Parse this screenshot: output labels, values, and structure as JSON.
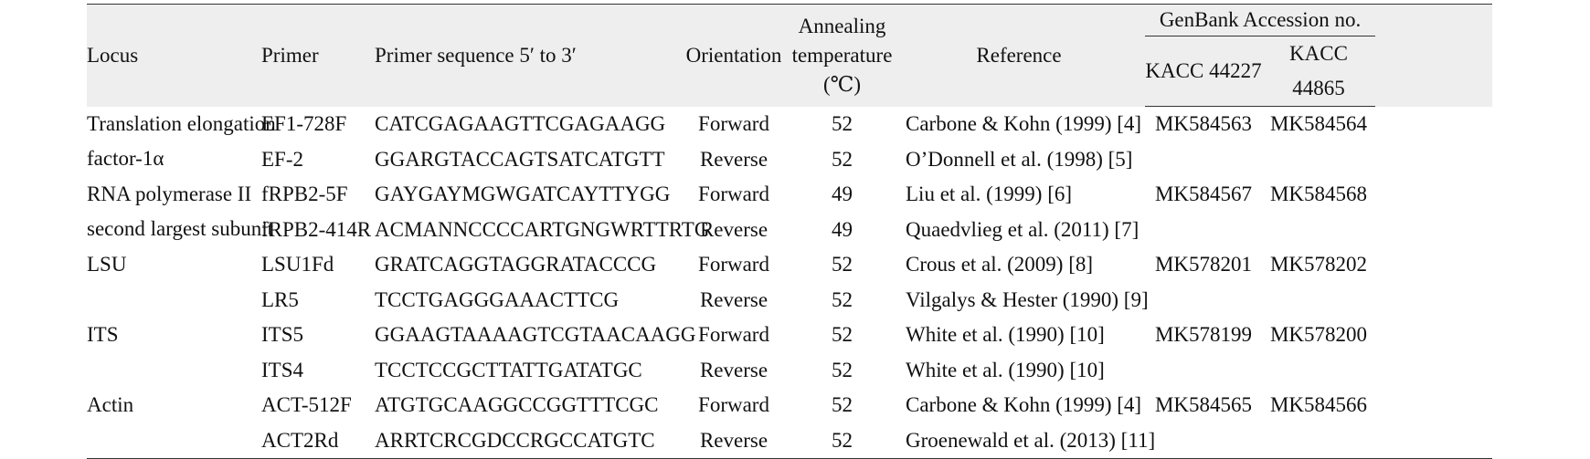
{
  "headers": {
    "locus": "Locus",
    "primer": "Primer",
    "sequence": "Primer sequence 5′ to 3′",
    "orientation": "Orientation",
    "annealing_line1": "Annealing",
    "annealing_line2": "temperature",
    "annealing_line3": "(℃)",
    "reference": "Reference",
    "genbank": "GenBank Accession no.",
    "kacc1": "KACC 44227",
    "kacc2": "KACC 44865"
  },
  "rows": [
    {
      "locus_line1": "Translation elongation",
      "locus_line2": "factor-1α",
      "primer": "EF1-728F",
      "sequence": "CATCGAGAAGTTCGAGAAGG",
      "orientation": "Forward",
      "temp": "52",
      "reference": "Carbone & Kohn (1999) [4]",
      "acc1": "MK584563",
      "acc2": "MK584564"
    },
    {
      "primer": "EF-2",
      "sequence": "GGARGTACCAGTSATCATGTT",
      "orientation": "Reverse",
      "temp": "52",
      "reference": "O’Donnell et al. (1998) [5]"
    },
    {
      "locus_line1": "RNA polymerase II",
      "locus_line2": "second largest subunit",
      "primer": "fRPB2-5F",
      "sequence": "GAYGAYMGWGATCAYTTYGG",
      "orientation": "Forward",
      "temp": "49",
      "reference": "Liu et al. (1999) [6]",
      "acc1": "MK584567",
      "acc2": "MK584568"
    },
    {
      "primer": "fRPB2-414R",
      "sequence": "ACMANNCCCCARTGNGWRTTRTG",
      "orientation": "Reverse",
      "temp": "49",
      "reference": "Quaedvlieg et al. (2011) [7]"
    },
    {
      "locus_line1": "LSU",
      "primer": "LSU1Fd",
      "sequence": "GRATCAGGTAGGRATACCCG",
      "orientation": "Forward",
      "temp": "52",
      "reference": "Crous et al. (2009) [8]",
      "acc1": "MK578201",
      "acc2": "MK578202"
    },
    {
      "primer": "LR5",
      "sequence": "TCCTGAGGGAAACTTCG",
      "orientation": "Reverse",
      "temp": "52",
      "reference": "Vilgalys & Hester (1990) [9]"
    },
    {
      "locus_line1": "ITS",
      "primer": "ITS5",
      "sequence": "GGAAGTAAAAGTCGTAACAAGG",
      "orientation": "Forward",
      "temp": "52",
      "reference": "White et al. (1990) [10]",
      "acc1": "MK578199",
      "acc2": "MK578200"
    },
    {
      "primer": "ITS4",
      "sequence": "TCCTCCGCTTATTGATATGC",
      "orientation": "Reverse",
      "temp": "52",
      "reference": "White et al. (1990) [10]"
    },
    {
      "locus_line1": "Actin",
      "primer": "ACT-512F",
      "sequence": "ATGTGCAAGGCCGGTTTCGC",
      "orientation": "Forward",
      "temp": "52",
      "reference": "Carbone & Kohn (1999) [4]",
      "acc1": "MK584565",
      "acc2": "MK584566"
    },
    {
      "primer": "ACT2Rd",
      "sequence": "ARRTCRCGDCCRGCCATGTC",
      "orientation": "Reverse",
      "temp": "52",
      "reference": "Groenewald et al. (2013) [11]"
    }
  ]
}
